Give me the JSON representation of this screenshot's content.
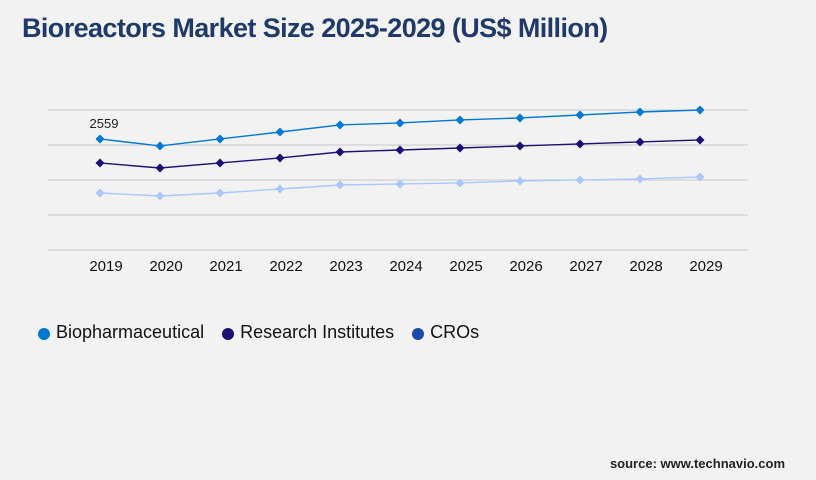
{
  "title": "Bioreactors Market Size 2025-2029 (US$ Million)",
  "source": "source: www.technavio.com",
  "chart_data": {
    "type": "line",
    "title": "Bioreactors Market Size 2025-2029 (US$ Million)",
    "xlabel": "",
    "ylabel": "",
    "categories": [
      "2019",
      "2020",
      "2021",
      "2022",
      "2023",
      "2024",
      "2025",
      "2026",
      "2027",
      "2028",
      "2029"
    ],
    "ylim": [
      0,
      3227
    ],
    "grid": true,
    "legend_position": "bottom-left",
    "series": [
      {
        "name": "Biopharmaceutical",
        "color": "#0078d4",
        "legend_color": "#0078d4",
        "values": [
          2559,
          2398,
          2559,
          2720,
          2882,
          2928,
          2997,
          3043,
          3112,
          3181,
          3227
        ]
      },
      {
        "name": "Research Institutes",
        "color": "#1a1272",
        "legend_color": "#1a1272",
        "values": [
          2006,
          1890,
          2006,
          2121,
          2259,
          2305,
          2351,
          2398,
          2444,
          2490,
          2536
        ]
      },
      {
        "name": "CROs",
        "color": "#a8c8fb",
        "legend_color": "#1a4aad",
        "values": [
          1314,
          1245,
          1314,
          1406,
          1498,
          1522,
          1545,
          1591,
          1614,
          1637,
          1683
        ]
      }
    ],
    "data_labels": [
      {
        "series": "Biopharmaceutical",
        "category": "2019",
        "text": "2559"
      }
    ]
  }
}
